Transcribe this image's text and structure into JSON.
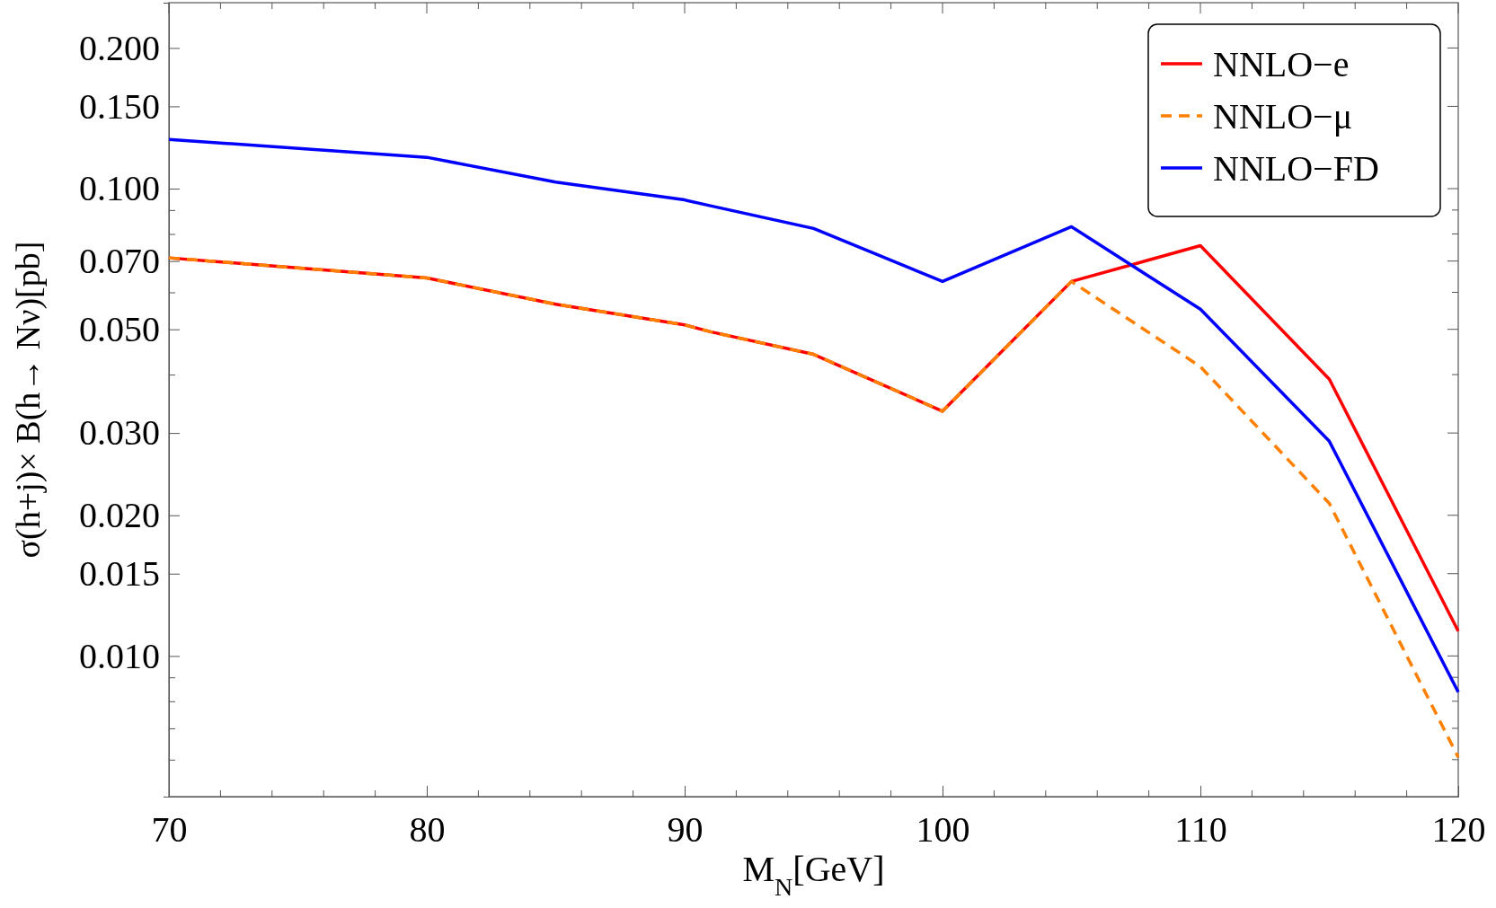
{
  "chart_data": {
    "type": "line",
    "xlabel": "M$_{N}$[GeV]",
    "ylabel": "σ(h+j)× B(h→ Nν)[pb]",
    "log": "y",
    "x": [
      70,
      80,
      85,
      90,
      91,
      95,
      100,
      105,
      110,
      115,
      120
    ],
    "xlim": [
      70,
      120
    ],
    "xticks": [
      70,
      80,
      90,
      100,
      110,
      120
    ],
    "ylim": [
      0.005,
      0.25
    ],
    "yticks": [
      {
        "value": 0.006,
        "label": null
      },
      {
        "value": 0.007,
        "label": null
      },
      {
        "value": 0.008,
        "label": null
      },
      {
        "value": 0.009,
        "label": null
      },
      {
        "value": 0.01,
        "label": "0.010"
      },
      {
        "value": 0.015,
        "label": "0.015"
      },
      {
        "value": 0.02,
        "label": "0.020"
      },
      {
        "value": 0.03,
        "label": "0.030"
      },
      {
        "value": 0.04,
        "label": null
      },
      {
        "value": 0.05,
        "label": "0.050"
      },
      {
        "value": 0.06,
        "label": null
      },
      {
        "value": 0.07,
        "label": "0.070"
      },
      {
        "value": 0.08,
        "label": null
      },
      {
        "value": 0.09,
        "label": null
      },
      {
        "value": 0.1,
        "label": "0.100"
      },
      {
        "value": 0.15,
        "label": "0.150"
      },
      {
        "value": 0.2,
        "label": "0.200"
      }
    ],
    "legend": "top right",
    "grid": false,
    "series": [
      {
        "name": "NNLO−e",
        "color": "#ff0000",
        "line_style": "solid",
        "values": [
          0.0711,
          0.0644,
          0.0566,
          0.0511,
          0.0494,
          0.0442,
          0.0334,
          0.0633,
          0.0755,
          0.0391,
          0.0113
        ]
      },
      {
        "name": "NNLO−μ",
        "color": "#ff8000",
        "line_style": "dashed",
        "values": [
          0.0711,
          0.0644,
          0.0566,
          0.0511,
          0.0494,
          0.0442,
          0.0334,
          0.0633,
          0.0416,
          0.0212,
          0.00607
        ]
      },
      {
        "name": "NNLO−FD",
        "color": "#0000ff",
        "line_style": "solid",
        "values": [
          0.1275,
          0.1167,
          0.1033,
          0.0946,
          0.0919,
          0.0822,
          0.0633,
          0.0829,
          0.0552,
          0.0288,
          0.00837
        ]
      }
    ]
  }
}
